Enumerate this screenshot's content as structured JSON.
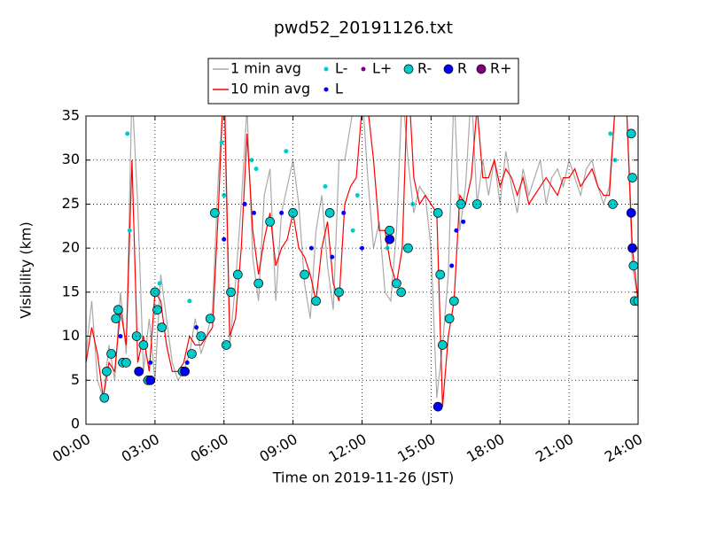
{
  "chart_data": {
    "type": "line",
    "title": "pwd52_20191126.txt",
    "xlabel": "Time on 2019-11-26 (JST)",
    "ylabel": "Visibility (km)",
    "xlim": [
      0,
      24
    ],
    "xticks": [
      {
        "value": 0,
        "label": "00:00"
      },
      {
        "value": 3,
        "label": "03:00"
      },
      {
        "value": 6,
        "label": "06:00"
      },
      {
        "value": 9,
        "label": "09:00"
      },
      {
        "value": 12,
        "label": "12:00"
      },
      {
        "value": 15,
        "label": "15:00"
      },
      {
        "value": 18,
        "label": "18:00"
      },
      {
        "value": 21,
        "label": "21:00"
      },
      {
        "value": 24,
        "label": "24:00"
      }
    ],
    "ylim": [
      0,
      35
    ],
    "yticks": [
      0,
      5,
      10,
      15,
      20,
      25,
      30,
      35
    ],
    "grid": true,
    "x": [
      0,
      0.25,
      0.5,
      0.75,
      1,
      1.25,
      1.5,
      1.75,
      2,
      2.25,
      2.5,
      2.75,
      3,
      3.25,
      3.5,
      3.75,
      4,
      4.25,
      4.5,
      4.75,
      5,
      5.25,
      5.5,
      5.75,
      6,
      6.25,
      6.5,
      6.75,
      7,
      7.25,
      7.5,
      7.75,
      8,
      8.25,
      8.5,
      8.75,
      9,
      9.25,
      9.5,
      9.75,
      10,
      10.25,
      10.5,
      10.75,
      11,
      11.25,
      11.5,
      11.75,
      12,
      12.25,
      12.5,
      12.75,
      13,
      13.25,
      13.5,
      13.75,
      14,
      14.25,
      14.5,
      14.75,
      15,
      15.25,
      15.5,
      15.75,
      16,
      16.25,
      16.5,
      16.75,
      17,
      17.25,
      17.5,
      17.75,
      18,
      18.25,
      18.5,
      18.75,
      19,
      19.25,
      19.5,
      19.75,
      20,
      20.25,
      20.5,
      20.75,
      21,
      21.25,
      21.5,
      21.75,
      22,
      22.25,
      22.5,
      22.75,
      23,
      23.25,
      23.5,
      23.75,
      24
    ],
    "series": [
      {
        "name": "1 min avg",
        "kind": "line",
        "color": "#aaaaaa",
        "values": [
          8,
          14,
          5,
          3,
          9,
          5,
          15,
          8,
          38,
          25,
          6,
          12,
          5,
          17,
          12,
          7,
          5,
          6,
          8,
          12,
          8,
          10,
          13,
          28,
          38,
          9,
          16,
          25,
          36,
          19,
          14,
          26,
          29,
          14,
          24,
          27,
          30,
          25,
          16,
          12,
          22,
          26,
          18,
          13,
          30,
          30,
          34,
          38,
          38,
          28,
          20,
          23,
          15,
          14,
          22,
          38,
          30,
          24,
          27,
          26,
          20,
          3,
          9,
          17,
          38,
          22,
          27,
          38,
          25,
          30,
          26,
          30,
          25,
          31,
          27,
          24,
          29,
          26,
          28,
          30,
          25,
          28,
          29,
          27,
          30,
          28,
          26,
          29,
          30,
          27,
          25,
          27,
          36,
          36,
          36,
          18,
          14
        ]
      },
      {
        "name": "10 min avg",
        "kind": "line",
        "color": "#ff0000",
        "values": [
          7,
          11,
          8,
          3,
          7,
          6,
          13,
          9,
          30,
          7,
          10,
          6,
          15,
          14,
          9,
          6,
          6,
          7,
          10,
          9,
          9,
          10,
          11,
          24,
          40,
          10,
          12,
          20,
          33,
          22,
          17,
          21,
          24,
          18,
          20,
          21,
          24,
          20,
          19,
          17,
          14,
          20,
          23,
          16,
          14,
          25,
          27,
          28,
          36,
          36,
          30,
          22,
          22,
          18,
          16,
          20,
          40,
          28,
          25,
          26,
          25,
          24,
          2,
          10,
          14,
          26,
          25,
          28,
          36,
          28,
          28,
          30,
          27,
          29,
          28,
          26,
          28,
          25,
          26,
          27,
          28,
          27,
          26,
          28,
          28,
          29,
          27,
          28,
          29,
          27,
          26,
          26,
          36,
          36,
          36,
          20,
          14
        ]
      },
      {
        "name": "L-",
        "kind": "scatter",
        "color": "#00cccc",
        "size": 2.5,
        "x": [
          1.8,
          1.9,
          3.2,
          4.5,
          5.9,
          6.0,
          7.2,
          7.4,
          8.7,
          10.4,
          11.6,
          11.8,
          13.1,
          14.2,
          22.8,
          23.0
        ],
        "values": [
          33,
          22,
          16,
          14,
          32,
          26,
          30,
          29,
          31,
          27,
          22,
          26,
          20,
          25,
          33,
          30
        ]
      },
      {
        "name": "L",
        "kind": "scatter",
        "color": "#0000ff",
        "size": 2.5,
        "x": [
          1.5,
          2.8,
          4.4,
          4.8,
          6.0,
          6.9,
          7.3,
          8.5,
          9.8,
          10.7,
          11.2,
          12.0,
          15.9,
          16.1,
          16.4
        ],
        "values": [
          10,
          7,
          7,
          11,
          21,
          25,
          24,
          24,
          20,
          19,
          24,
          20,
          18,
          22,
          23
        ]
      },
      {
        "name": "L+",
        "kind": "scatter",
        "color": "#800080",
        "size": 2.5,
        "x": [],
        "values": []
      },
      {
        "name": "R-",
        "kind": "scatter",
        "color": "#00cccc",
        "size": 5,
        "x": [
          0.8,
          0.9,
          1.1,
          1.3,
          1.4,
          1.6,
          1.75,
          2.2,
          2.5,
          2.7,
          3.0,
          3.1,
          3.3,
          4.2,
          4.6,
          5.0,
          5.4,
          5.6,
          6.1,
          6.3,
          6.6,
          7.5,
          8.0,
          9.0,
          9.5,
          10.0,
          10.6,
          11.0,
          13.2,
          13.5,
          13.7,
          14.0,
          15.3,
          15.4,
          15.5,
          15.8,
          16.0,
          16.3,
          17.0,
          22.9,
          23.7,
          23.75,
          23.8,
          23.85,
          24.0
        ],
        "values": [
          3,
          6,
          8,
          12,
          13,
          7,
          7,
          10,
          9,
          5,
          15,
          13,
          11,
          6,
          8,
          10,
          12,
          24,
          9,
          15,
          17,
          16,
          23,
          24,
          17,
          14,
          24,
          15,
          22,
          16,
          15,
          20,
          24,
          17,
          9,
          12,
          14,
          25,
          25,
          25,
          33,
          28,
          18,
          14,
          14
        ]
      },
      {
        "name": "R",
        "kind": "scatter",
        "color": "#0000ff",
        "size": 5,
        "x": [
          2.3,
          2.8,
          4.3,
          13.2,
          15.3,
          23.7,
          23.75
        ],
        "values": [
          6,
          5,
          6,
          21,
          2,
          24,
          20
        ]
      },
      {
        "name": "R+",
        "kind": "scatter",
        "color": "#800080",
        "size": 5,
        "x": [],
        "values": []
      }
    ]
  }
}
